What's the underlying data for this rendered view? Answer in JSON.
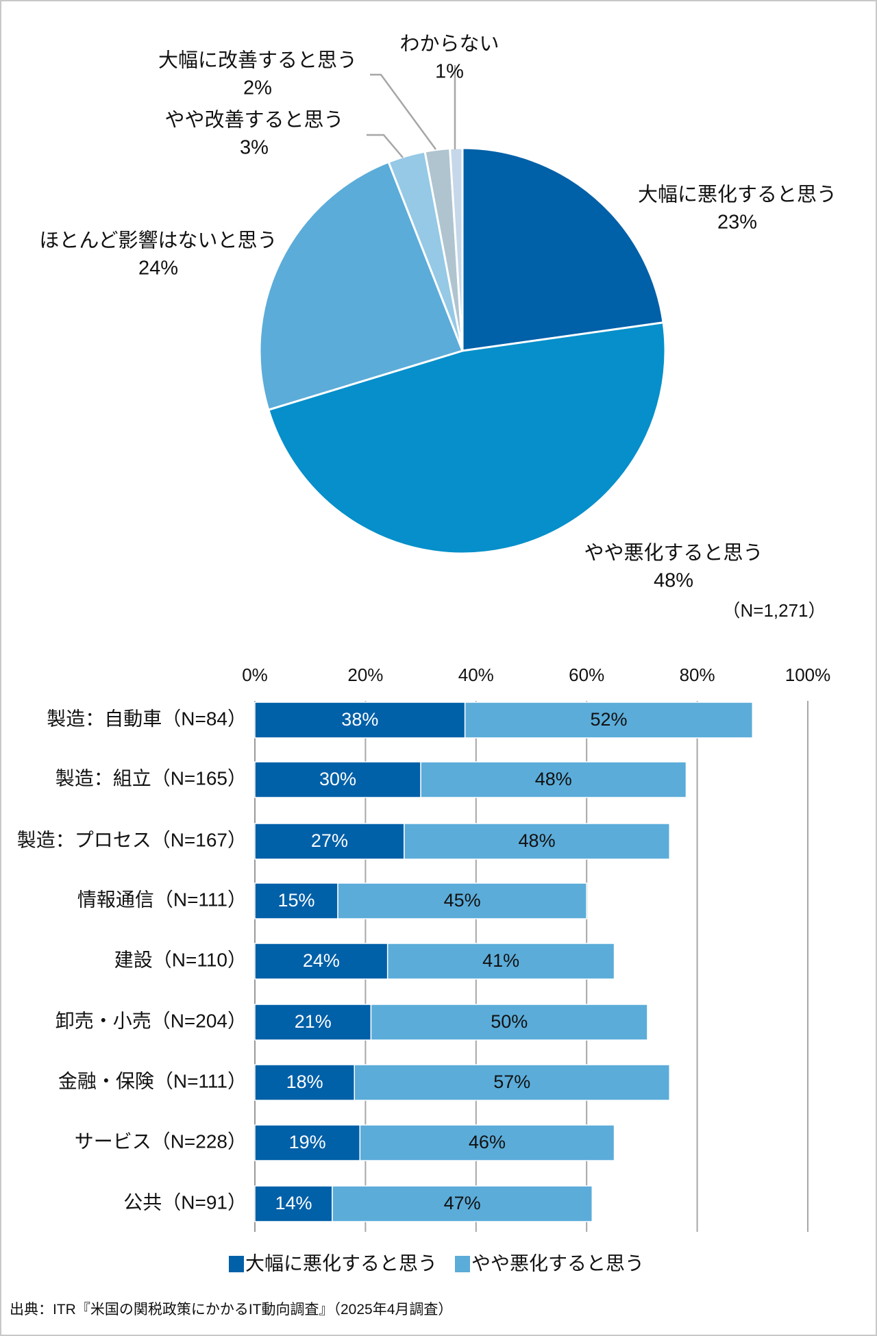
{
  "chart_data": [
    {
      "type": "pie",
      "slices": [
        {
          "label": "大幅に悪化すると思う",
          "value": 23,
          "value_label": "23%",
          "color": "#0060A8"
        },
        {
          "label": "やや悪化すると思う",
          "value": 48,
          "value_label": "48%",
          "color": "#068FCA"
        },
        {
          "label": "ほとんど影響はないと思う",
          "value": 24,
          "value_label": "24%",
          "color": "#5BACD9"
        },
        {
          "label": "やや改善すると思う",
          "value": 3,
          "value_label": "3%",
          "color": "#95C9E6"
        },
        {
          "label": "大幅に改善すると思う",
          "value": 2,
          "value_label": "2%",
          "color": "#AFC4CF"
        },
        {
          "label": "わからない",
          "value": 1,
          "value_label": "1%",
          "color": "#C5D7E8"
        }
      ],
      "note": "（N=1,271）"
    },
    {
      "type": "bar",
      "orientation": "horizontal",
      "stacked": true,
      "categories": [
        "製造：自動車（N=84）",
        "製造：組立（N=165）",
        "製造：プロセス（N=167）",
        "情報通信（N=111）",
        "建設（N=110）",
        "卸売・小売（N=204）",
        "金融・保険（N=111）",
        "サービス（N=228）",
        "公共（N=91）"
      ],
      "series": [
        {
          "name": "大幅に悪化すると思う",
          "color": "#0060A8",
          "values": [
            38,
            30,
            27,
            15,
            24,
            21,
            18,
            19,
            14
          ]
        },
        {
          "name": "やや悪化すると思う",
          "color": "#5BACD9",
          "values": [
            52,
            48,
            48,
            45,
            41,
            50,
            57,
            46,
            47
          ]
        }
      ],
      "xlim": [
        0,
        100
      ],
      "xticks": [
        "0%",
        "20%",
        "40%",
        "60%",
        "80%",
        "100%"
      ],
      "grid": true,
      "legend": "bottom"
    }
  ],
  "source": "出典：ITR『米国の関税政策にかかるIT動向調査』（2025年4月調査）"
}
